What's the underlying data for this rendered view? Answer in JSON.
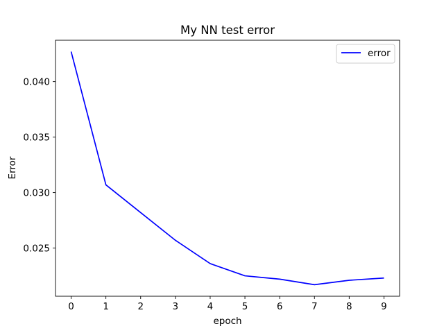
{
  "chart_data": {
    "type": "line",
    "title": "My NN test error",
    "xlabel": "epoch",
    "ylabel": "Error",
    "x": [
      0,
      1,
      2,
      3,
      4,
      5,
      6,
      7,
      8,
      9
    ],
    "xticks": [
      0,
      1,
      2,
      3,
      4,
      5,
      6,
      7,
      8,
      9
    ],
    "xtick_labels": [
      "0",
      "1",
      "2",
      "3",
      "4",
      "5",
      "6",
      "7",
      "8",
      "9"
    ],
    "yticks": [
      0.025,
      0.03,
      0.035,
      0.04
    ],
    "ytick_labels": [
      "0.025",
      "0.030",
      "0.035",
      "0.040"
    ],
    "xlim": [
      -0.45,
      9.45
    ],
    "ylim": [
      0.02066,
      0.04373
    ],
    "grid": false,
    "legend_position": "top-right",
    "series": [
      {
        "name": "error",
        "color": "#0000ff",
        "values": [
          0.0427,
          0.0307,
          0.0282,
          0.0257,
          0.0236,
          0.0225,
          0.0222,
          0.0217,
          0.0221,
          0.0223
        ]
      }
    ]
  }
}
